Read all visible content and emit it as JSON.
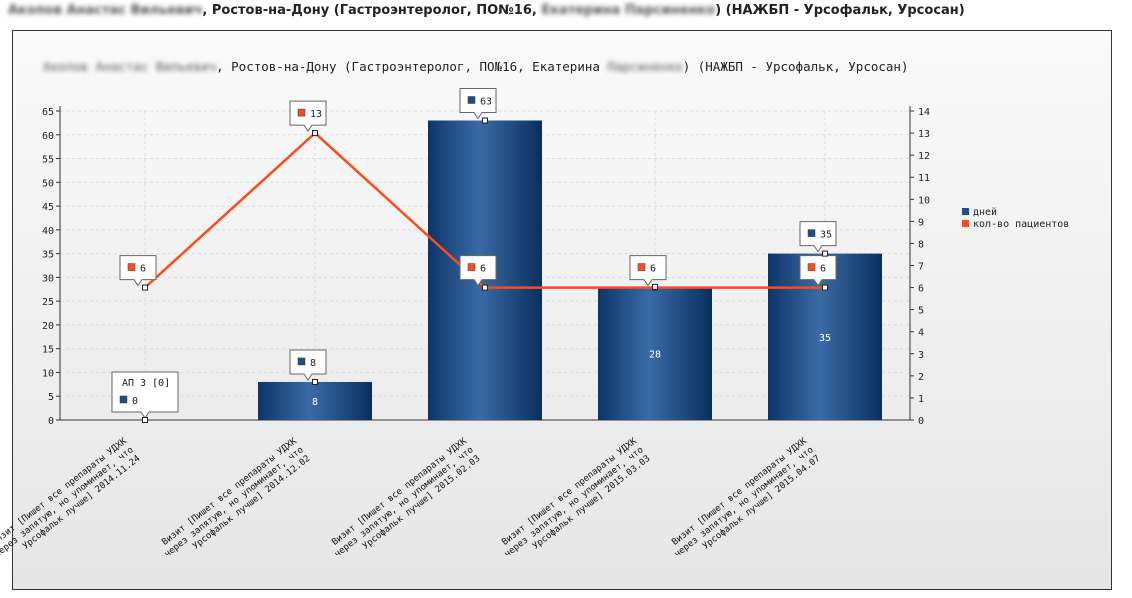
{
  "header": {
    "name_blurred": "Акопов Анастас Вильевич",
    "title_mid": ", Ростов-на-Дону (Гастроэнтеролог, ПО№16, ",
    "rep_blurred": "Екатерина Парсиненко",
    "title_end": ") (НАЖБП - Урсофальк, Урсосан)"
  },
  "chart_data": {
    "type": "bar+line",
    "title": {
      "name_blurred": "Акопов Анастас Вильевич",
      "mid": ", Ростов-на-Дону (Гастроэнтеролог, ПО№16, Екатерина ",
      "rep_blurred": "Парсиненко",
      "end": ") (НАЖБП - Урсофальк, Урсосан)"
    },
    "categories": [
      [
        "Визит [Пишет все препараты УДХК",
        "через запятую, но упоминает, что",
        "Урсофальк лучше] 2014.11.24"
      ],
      [
        "Визит [Пишет все препараты УДХК",
        "через запятую, но упоминает, что",
        "Урсофальк лучше] 2014.12.02"
      ],
      [
        "Визит [Пишет все препараты УДХК",
        "через запятую, но упоминает, что",
        "Урсофальк лучше] 2015.02.03"
      ],
      [
        "Визит [Пишет все препараты УДХК",
        "через запятую, но упоминает, что",
        "Урсофальк лучше] 2015.03.03"
      ],
      [
        "Визит [Пишет все препараты УДХК",
        "через запятую, но упоминает, что",
        "Урсофальк лучше] 2015.04.07"
      ]
    ],
    "series": [
      {
        "name": "дней",
        "type": "bar",
        "axis": "left",
        "color": "#1f4f8a",
        "values": [
          0,
          8,
          63,
          28,
          35
        ]
      },
      {
        "name": "кол-во пациентов",
        "type": "line",
        "axis": "right",
        "color": "#ff4a1a",
        "values": [
          6,
          13,
          6,
          6,
          6
        ]
      }
    ],
    "annotation": "АП 3 [0]",
    "ylim_left": [
      0,
      65
    ],
    "yticks_left": [
      0,
      5,
      10,
      15,
      20,
      25,
      30,
      35,
      40,
      45,
      50,
      55,
      60,
      65
    ],
    "ylim_right": [
      0,
      14
    ],
    "yticks_right": [
      0,
      1,
      2,
      3,
      4,
      5,
      6,
      7,
      8,
      9,
      10,
      11,
      12,
      13,
      14
    ],
    "legend_position": "right"
  }
}
